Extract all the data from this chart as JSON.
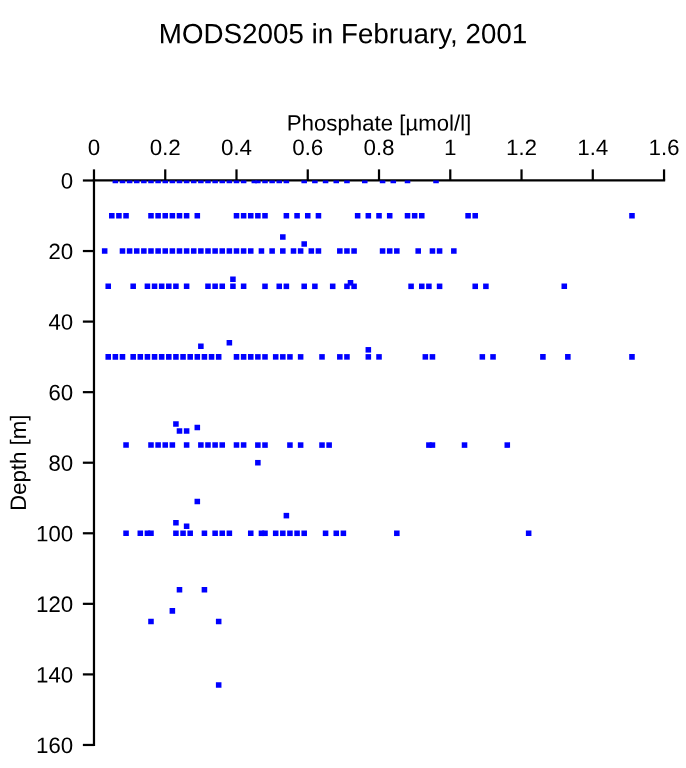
{
  "chart_data": {
    "type": "scatter",
    "title": "MODS2005 in February, 2001",
    "xlabel": "Phosphate [µmol/l]",
    "ylabel": "Depth [m]",
    "xlim": [
      0,
      1.6
    ],
    "xticks": [
      0,
      0.2,
      0.4,
      0.6,
      0.8,
      1,
      1.2,
      1.4,
      1.6
    ],
    "ylim": [
      160,
      0
    ],
    "yticks": [
      0,
      20,
      40,
      60,
      80,
      100,
      120,
      140,
      160
    ],
    "marker": "square",
    "grid": false,
    "series": [
      {
        "color": "#0000ff",
        "x": [
          0.06,
          0.08,
          0.1,
          0.12,
          0.14,
          0.16,
          0.18,
          0.2,
          0.22,
          0.24,
          0.26,
          0.28,
          0.3,
          0.32,
          0.34,
          0.36,
          0.38,
          0.4,
          0.42,
          0.45,
          0.46,
          0.48,
          0.5,
          0.52,
          0.54,
          0.59,
          0.62,
          0.65,
          0.68,
          0.71,
          0.76,
          0.81,
          0.84,
          0.88,
          0.96,
          0.05,
          0.07,
          0.09,
          0.16,
          0.18,
          0.2,
          0.22,
          0.24,
          0.26,
          0.29,
          0.4,
          0.42,
          0.44,
          0.46,
          0.48,
          0.54,
          0.57,
          0.6,
          0.63,
          0.74,
          0.77,
          0.8,
          0.83,
          0.88,
          0.9,
          0.92,
          1.05,
          1.07,
          1.51,
          0.53,
          0.59,
          0.03,
          0.08,
          0.1,
          0.12,
          0.14,
          0.16,
          0.18,
          0.2,
          0.22,
          0.24,
          0.26,
          0.28,
          0.3,
          0.32,
          0.34,
          0.36,
          0.38,
          0.4,
          0.42,
          0.44,
          0.47,
          0.5,
          0.53,
          0.56,
          0.58,
          0.61,
          0.63,
          0.69,
          0.71,
          0.73,
          0.81,
          0.83,
          0.85,
          0.91,
          0.95,
          0.97,
          1.01,
          0.04,
          0.11,
          0.15,
          0.17,
          0.19,
          0.21,
          0.23,
          0.26,
          0.32,
          0.34,
          0.36,
          0.39,
          0.42,
          0.48,
          0.52,
          0.54,
          0.59,
          0.62,
          0.67,
          0.71,
          0.73,
          0.89,
          0.92,
          0.94,
          0.97,
          1.07,
          1.1,
          1.32,
          0.39,
          0.72,
          0.04,
          0.06,
          0.08,
          0.11,
          0.13,
          0.15,
          0.17,
          0.19,
          0.21,
          0.23,
          0.25,
          0.27,
          0.29,
          0.31,
          0.33,
          0.35,
          0.4,
          0.42,
          0.44,
          0.46,
          0.48,
          0.51,
          0.53,
          0.55,
          0.58,
          0.64,
          0.69,
          0.71,
          0.77,
          0.8,
          0.93,
          0.95,
          1.09,
          1.12,
          1.26,
          1.33,
          1.51,
          0.3,
          0.38,
          0.77,
          0.09,
          0.16,
          0.18,
          0.2,
          0.22,
          0.26,
          0.3,
          0.32,
          0.34,
          0.36,
          0.4,
          0.42,
          0.46,
          0.48,
          0.55,
          0.58,
          0.64,
          0.66,
          0.94,
          0.95,
          1.04,
          1.16,
          0.23,
          0.24,
          0.26,
          0.29,
          0.46,
          0.09,
          0.13,
          0.15,
          0.16,
          0.23,
          0.25,
          0.27,
          0.31,
          0.34,
          0.36,
          0.38,
          0.44,
          0.47,
          0.48,
          0.51,
          0.53,
          0.55,
          0.57,
          0.59,
          0.65,
          0.68,
          0.7,
          0.85,
          1.22,
          0.23,
          0.26,
          0.29,
          0.54,
          0.24,
          0.31,
          0.22,
          0.16,
          0.35,
          0.35
        ],
        "values": [
          0,
          0,
          0,
          0,
          0,
          0,
          0,
          0,
          0,
          0,
          0,
          0,
          0,
          0,
          0,
          0,
          0,
          0,
          0,
          0,
          0,
          0,
          0,
          0,
          0,
          0,
          0,
          0,
          0,
          0,
          0,
          0,
          0,
          0,
          0,
          10,
          10,
          10,
          10,
          10,
          10,
          10,
          10,
          10,
          10,
          10,
          10,
          10,
          10,
          10,
          10,
          10,
          10,
          10,
          10,
          10,
          10,
          10,
          10,
          10,
          10,
          10,
          10,
          10,
          16,
          18,
          20,
          20,
          20,
          20,
          20,
          20,
          20,
          20,
          20,
          20,
          20,
          20,
          20,
          20,
          20,
          20,
          20,
          20,
          20,
          20,
          20,
          20,
          20,
          20,
          20,
          20,
          20,
          20,
          20,
          20,
          20,
          20,
          20,
          20,
          20,
          20,
          20,
          30,
          30,
          30,
          30,
          30,
          30,
          30,
          30,
          30,
          30,
          30,
          30,
          30,
          30,
          30,
          30,
          30,
          30,
          30,
          30,
          30,
          30,
          30,
          30,
          30,
          30,
          30,
          30,
          28,
          29,
          50,
          50,
          50,
          50,
          50,
          50,
          50,
          50,
          50,
          50,
          50,
          50,
          50,
          50,
          50,
          50,
          50,
          50,
          50,
          50,
          50,
          50,
          50,
          50,
          50,
          50,
          50,
          50,
          50,
          50,
          50,
          50,
          50,
          50,
          50,
          50,
          50,
          47,
          46,
          48,
          75,
          75,
          75,
          75,
          75,
          75,
          75,
          75,
          75,
          75,
          75,
          75,
          75,
          75,
          75,
          75,
          75,
          75,
          75,
          75,
          75,
          75,
          69,
          71,
          71,
          70,
          80,
          100,
          100,
          100,
          100,
          100,
          100,
          100,
          100,
          100,
          100,
          100,
          100,
          100,
          100,
          100,
          100,
          100,
          100,
          100,
          100,
          100,
          100,
          100,
          100,
          97,
          98,
          91,
          95,
          116,
          116,
          122,
          125,
          125,
          143
        ]
      }
    ]
  }
}
